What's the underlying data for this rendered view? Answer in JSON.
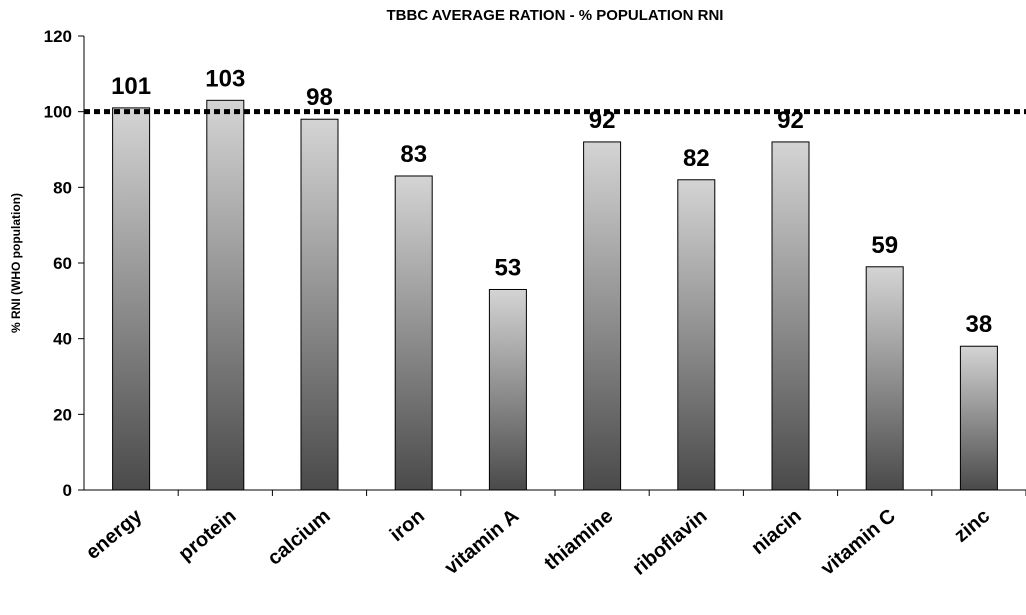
{
  "chart_data": {
    "type": "bar",
    "title": "TBBC AVERAGE RATION - % POPULATION RNI",
    "y_label": "% RNI (WHO population)",
    "categories": [
      "energy",
      "protein",
      "calcium",
      "iron",
      "vitamin A",
      "thiamine",
      "riboflavin",
      "niacin",
      "vitamin C",
      "zinc"
    ],
    "values": [
      101,
      103,
      98,
      83,
      53,
      92,
      82,
      92,
      59,
      38
    ],
    "color_top": "#d4d4d4",
    "color_bottom": "#4a4a4a",
    "ylim": [
      0,
      120
    ],
    "yticks": [
      0,
      20,
      40,
      60,
      80,
      100,
      120
    ],
    "reference_line": 100
  }
}
